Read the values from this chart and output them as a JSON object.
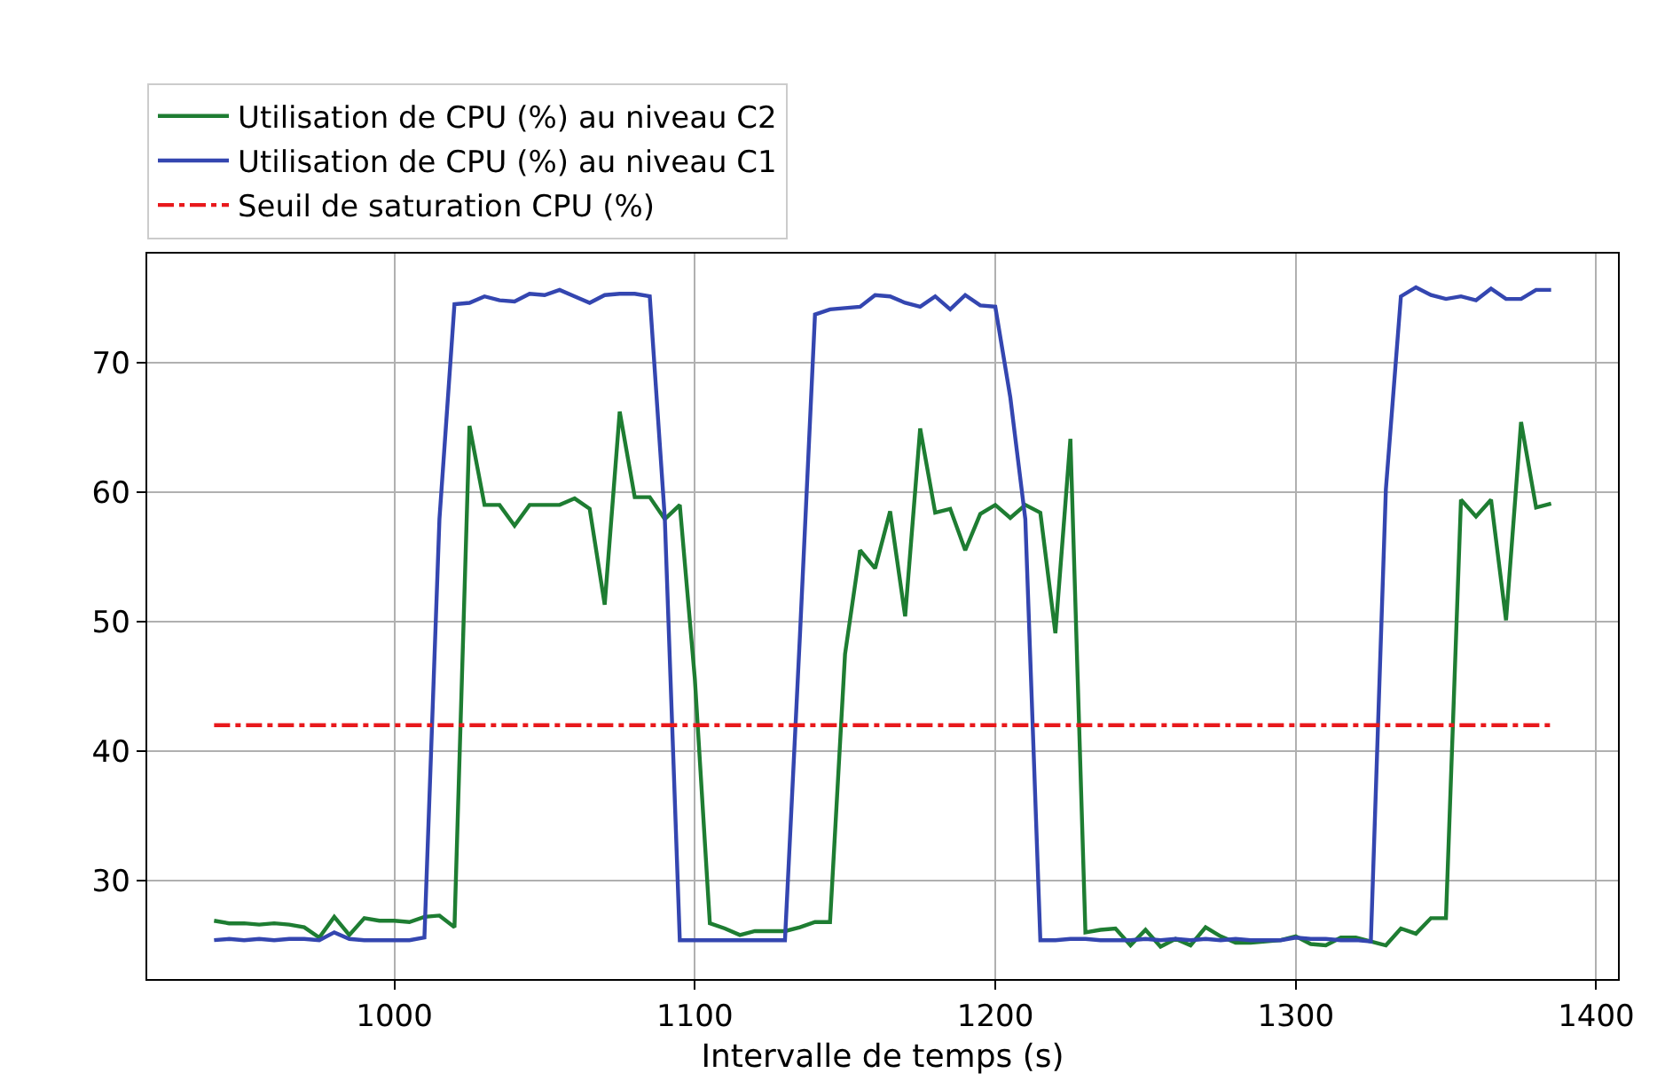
{
  "chart_data": {
    "type": "line",
    "xlabel": "Intervalle de temps (s)",
    "xlim": [
      917.75,
      1407.25
    ],
    "ylim": [
      22.4,
      78.4
    ],
    "xticks": [
      1000,
      1100,
      1200,
      1300,
      1400
    ],
    "yticks": [
      30,
      40,
      50,
      60,
      70
    ],
    "grid": true,
    "legend": "top left",
    "marker": "none",
    "x": [
      940,
      945,
      950,
      955,
      960,
      965,
      970,
      975,
      980,
      985,
      990,
      995,
      1000,
      1005,
      1010,
      1015,
      1020,
      1025,
      1030,
      1035,
      1040,
      1045,
      1050,
      1055,
      1060,
      1065,
      1070,
      1075,
      1080,
      1085,
      1090,
      1095,
      1100,
      1105,
      1110,
      1115,
      1120,
      1125,
      1130,
      1135,
      1140,
      1145,
      1150,
      1155,
      1160,
      1165,
      1170,
      1175,
      1180,
      1185,
      1190,
      1195,
      1200,
      1205,
      1210,
      1215,
      1220,
      1225,
      1230,
      1235,
      1240,
      1245,
      1250,
      1255,
      1260,
      1265,
      1270,
      1275,
      1280,
      1285,
      1290,
      1295,
      1300,
      1305,
      1310,
      1315,
      1320,
      1325,
      1330,
      1335,
      1340,
      1345,
      1350,
      1355,
      1360,
      1365,
      1370,
      1375,
      1380,
      1385
    ],
    "series": [
      {
        "name": "Utilisation de CPU (%) au niveau C2",
        "color": "#1e7d32",
        "line_style": "solid",
        "values": [
          26.9,
          26.7,
          26.7,
          26.6,
          26.7,
          26.6,
          26.4,
          25.6,
          27.2,
          25.8,
          27.1,
          26.9,
          26.9,
          26.8,
          27.2,
          27.3,
          26.4,
          65.1,
          59.0,
          59.0,
          57.4,
          59.0,
          59.0,
          59.0,
          59.5,
          58.7,
          51.3,
          66.2,
          59.6,
          59.6,
          57.9,
          59.0,
          45.6,
          26.7,
          26.3,
          25.8,
          26.1,
          26.1,
          26.1,
          26.4,
          26.8,
          26.8,
          47.5,
          55.5,
          54.1,
          58.5,
          50.4,
          64.9,
          58.4,
          58.7,
          55.5,
          58.3,
          59.0,
          58.0,
          59.0,
          58.4,
          49.1,
          64.1,
          26.0,
          26.2,
          26.3,
          25.0,
          26.2,
          24.9,
          25.5,
          25.0,
          26.4,
          25.7,
          25.2,
          25.2,
          25.3,
          25.4,
          25.7,
          25.1,
          25.0,
          25.6,
          25.6,
          25.3,
          25.0,
          26.3,
          25.9,
          27.1,
          27.1,
          59.4,
          58.1,
          59.4,
          50.1,
          65.4,
          58.8,
          59.1
        ]
      },
      {
        "name": "Utilisation de CPU (%) au niveau C1",
        "color": "#3446b0",
        "line_style": "solid",
        "values": [
          25.4,
          25.5,
          25.4,
          25.5,
          25.4,
          25.5,
          25.5,
          25.4,
          26.0,
          25.5,
          25.4,
          25.4,
          25.4,
          25.4,
          25.6,
          57.9,
          74.5,
          74.6,
          75.1,
          74.8,
          74.7,
          75.3,
          75.2,
          75.6,
          75.1,
          74.6,
          75.2,
          75.3,
          75.3,
          75.1,
          58.0,
          25.4,
          25.4,
          25.4,
          25.4,
          25.4,
          25.4,
          25.4,
          25.4,
          49.0,
          73.7,
          74.1,
          74.2,
          74.3,
          75.2,
          75.1,
          74.6,
          74.3,
          75.1,
          74.1,
          75.2,
          74.4,
          74.3,
          67.3,
          57.9,
          25.4,
          25.4,
          25.5,
          25.5,
          25.4,
          25.4,
          25.4,
          25.5,
          25.4,
          25.5,
          25.4,
          25.5,
          25.4,
          25.5,
          25.4,
          25.4,
          25.4,
          25.6,
          25.5,
          25.5,
          25.4,
          25.4,
          25.3,
          60.2,
          75.1,
          75.8,
          75.2,
          74.9,
          75.1,
          74.8,
          75.7,
          74.9,
          74.9,
          75.6,
          75.6
        ]
      },
      {
        "name": "Seuil de saturation CPU (%)",
        "color": "#e8191c",
        "line_style": "dashdot",
        "x": [
          940,
          1385
        ],
        "values": [
          42,
          42
        ]
      }
    ]
  }
}
